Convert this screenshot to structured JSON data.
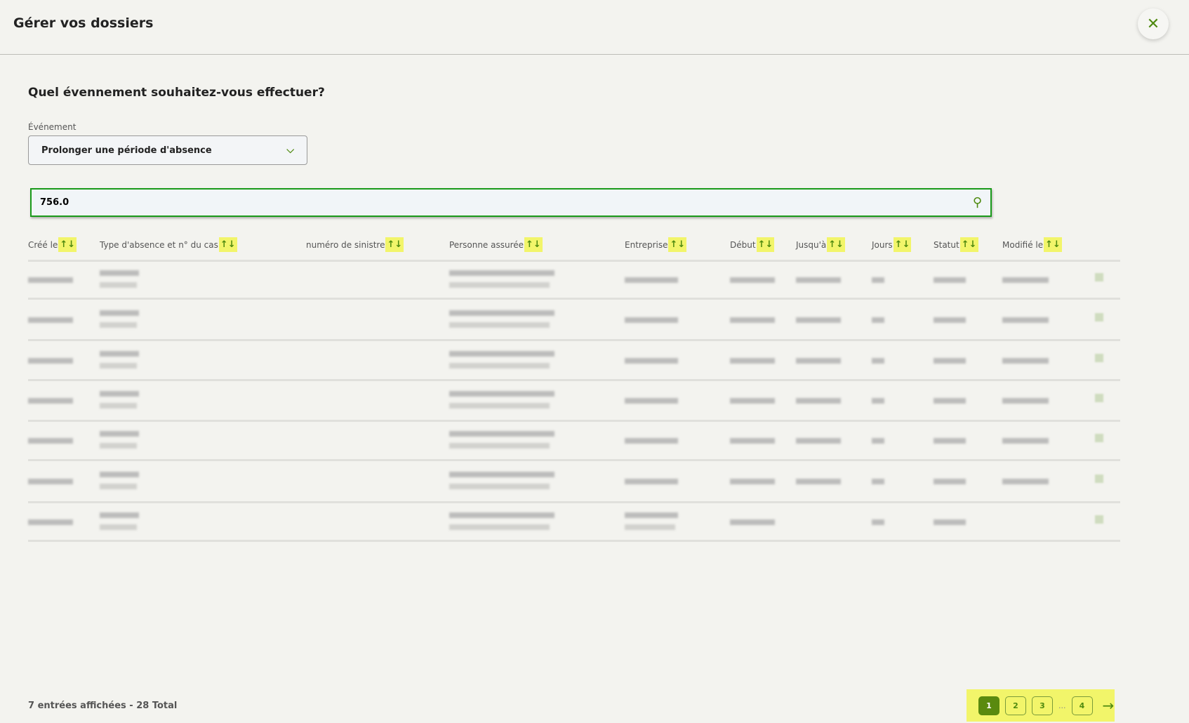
{
  "header": {
    "title": "Gérer vos dossiers",
    "close_icon": "close-icon"
  },
  "form": {
    "question": "Quel évennement souhaitez-vous effectuer?",
    "event_label": "Événement",
    "event_value": "Prolonger une période d'absence"
  },
  "search": {
    "value": "756.0"
  },
  "table": {
    "columns": [
      "Créé le",
      "Type d'absence et n° du cas",
      "numéro de sinistre",
      "Personne assurée",
      "Entreprise",
      "Début",
      "Jusqu'à",
      "Jours",
      "Statut",
      "Modifié le"
    ],
    "sort_icon": "↑↓",
    "row_count": 7
  },
  "colors": {
    "accent": "#4f8a10",
    "highlight": "#f2f56a",
    "search_border": "#1a9a1a"
  },
  "footer": {
    "summary": "7 entrées affichées - 28 Total"
  },
  "pagination": {
    "pages": [
      "1",
      "2",
      "3",
      "4"
    ],
    "current": "1",
    "ellipsis": "..."
  }
}
